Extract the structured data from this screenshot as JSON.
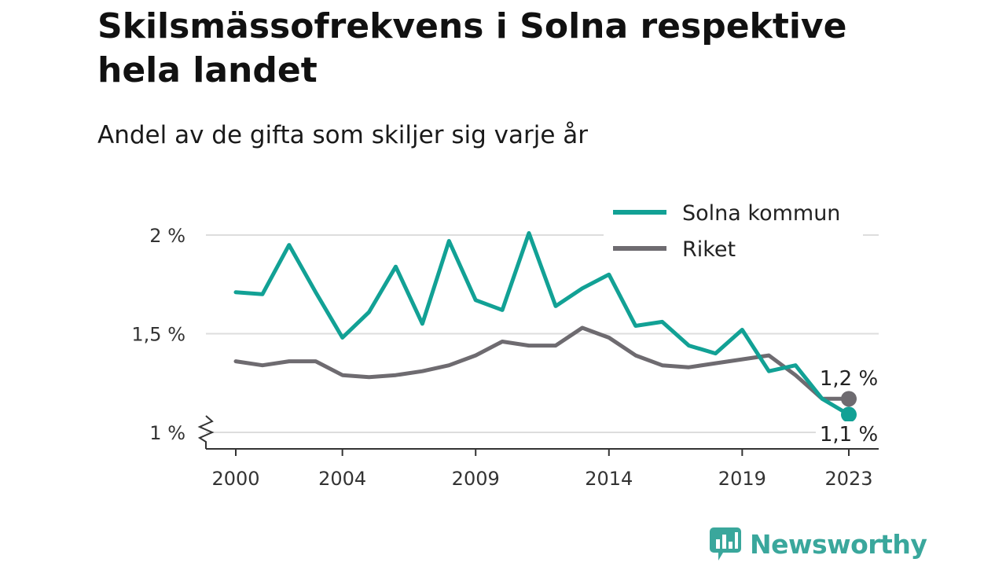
{
  "title": "Skilsmässofrekvens i Solna respektive hela landet",
  "subtitle": "Andel av de gifta som skiljer sig varje år",
  "colors": {
    "solna": "#12a195",
    "riket": "#6e6b70",
    "grid": "#dddddd",
    "axis": "#333333",
    "brand": "#3aa79c"
  },
  "logo": {
    "text": "Newsworthy",
    "icon": "newsworthy-chat-bar-icon"
  },
  "chart_data": {
    "type": "line",
    "x": [
      2000,
      2001,
      2002,
      2003,
      2004,
      2005,
      2006,
      2007,
      2008,
      2009,
      2010,
      2011,
      2012,
      2013,
      2014,
      2015,
      2016,
      2017,
      2018,
      2019,
      2020,
      2021,
      2022,
      2023
    ],
    "x_ticks": [
      2000,
      2004,
      2009,
      2014,
      2019,
      2023
    ],
    "x_tick_labels": [
      "2000",
      "2004",
      "2009",
      "2014",
      "2019",
      "2023"
    ],
    "y_ticks": [
      1.0,
      1.5,
      2.0
    ],
    "y_tick_labels": [
      "1 %",
      "1,5 %",
      "2 %"
    ],
    "ylim": [
      0.92,
      2.05
    ],
    "y_axis_break": true,
    "grid": true,
    "legend_position": "top-right",
    "series": [
      {
        "name": "Solna kommun",
        "color_key": "solna",
        "values": [
          1.71,
          1.7,
          1.95,
          1.71,
          1.48,
          1.61,
          1.84,
          1.55,
          1.97,
          1.67,
          1.62,
          2.01,
          1.64,
          1.73,
          1.8,
          1.54,
          1.56,
          1.44,
          1.4,
          1.52,
          1.31,
          1.34,
          1.17,
          1.09
        ],
        "end_label": "1,1 %"
      },
      {
        "name": "Riket",
        "color_key": "riket",
        "values": [
          1.36,
          1.34,
          1.36,
          1.36,
          1.29,
          1.28,
          1.29,
          1.31,
          1.34,
          1.39,
          1.46,
          1.44,
          1.44,
          1.53,
          1.48,
          1.39,
          1.34,
          1.33,
          1.35,
          1.37,
          1.39,
          1.29,
          1.17,
          1.17
        ],
        "end_label": "1,2 %"
      }
    ]
  }
}
